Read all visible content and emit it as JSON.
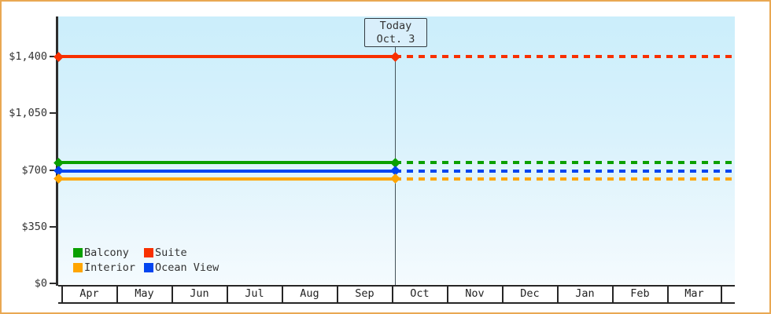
{
  "chart_data": {
    "type": "line",
    "title": "",
    "description": "Cruise cabin price trend by month; solid lines up to today, dashed projection after",
    "x_categories": [
      "Apr",
      "May",
      "Jun",
      "Jul",
      "Aug",
      "Sep",
      "Oct",
      "Nov",
      "Dec",
      "Jan",
      "Feb",
      "Mar"
    ],
    "y_ticks": [
      {
        "label": "$0",
        "value": 0
      },
      {
        "label": "$350",
        "value": 350
      },
      {
        "label": "$700",
        "value": 700
      },
      {
        "label": "$1,050",
        "value": 1050
      },
      {
        "label": "$1,400",
        "value": 1400
      }
    ],
    "ylim": [
      0,
      1400
    ],
    "grid": false,
    "today": {
      "line1": "Today",
      "line2": "Oct. 3",
      "month": "Oct",
      "day": 3
    },
    "line_style": {
      "past": "solid",
      "future": "dashed",
      "marker": "diamond"
    },
    "series": [
      {
        "name": "Suite",
        "color": "#f83000",
        "value": 1400
      },
      {
        "name": "Balcony",
        "color": "#0aa000",
        "value": 745
      },
      {
        "name": "Ocean View",
        "color": "#0345f0",
        "value": 695
      },
      {
        "name": "Interior",
        "color": "#ffa500",
        "value": 645
      }
    ]
  },
  "legend": {
    "position": "bottom-left",
    "items": [
      {
        "label": "Balcony",
        "color": "#0aa000"
      },
      {
        "label": "Suite",
        "color": "#f83000"
      },
      {
        "label": "Interior",
        "color": "#ffa500"
      },
      {
        "label": "Ocean View",
        "color": "#0345f0"
      }
    ]
  },
  "colors": {
    "frame_border": "#e9a852",
    "plot_top": "#cbeefb",
    "plot_bottom": "#f4fbfe",
    "axis": "#2d2d2d",
    "text": "#333333",
    "today_line": "#44525a"
  }
}
